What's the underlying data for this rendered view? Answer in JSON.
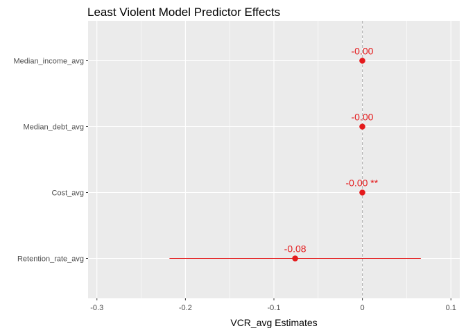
{
  "chart_data": {
    "type": "scatter",
    "title": "Least Violent Model Predictor Effects",
    "xlabel": "VCR_avg Estimates",
    "ylabel": "",
    "xlim": [
      -0.31,
      0.11
    ],
    "xticks": [
      -0.3,
      -0.2,
      -0.1,
      0,
      0.1
    ],
    "xtick_labels": [
      "-0.3",
      "-0.2",
      "-0.1",
      "0",
      "0.1"
    ],
    "grid": true,
    "reference_line_x": 0,
    "categories": [
      "Median_income_avg",
      "Median_debt_avg",
      "Cost_avg",
      "Retention_rate_avg"
    ],
    "points": [
      {
        "term": "Median_income_avg",
        "estimate": -0.0001,
        "ci_low": -0.0001,
        "ci_high": -0.0001,
        "label": "-0.00"
      },
      {
        "term": "Median_debt_avg",
        "estimate": -0.0001,
        "ci_low": -0.0001,
        "ci_high": -0.0001,
        "label": "-0.00"
      },
      {
        "term": "Cost_avg",
        "estimate": -0.0001,
        "ci_low": -0.0001,
        "ci_high": -0.0001,
        "label": "-0.00 **"
      },
      {
        "term": "Retention_rate_avg",
        "estimate": -0.076,
        "ci_low": -0.218,
        "ci_high": 0.066,
        "label": "-0.08"
      }
    ],
    "colors": {
      "panel": "#ebebeb",
      "grid": "#ffffff",
      "point": "#e41a1c",
      "reference_line": "#aaaaaa"
    }
  }
}
